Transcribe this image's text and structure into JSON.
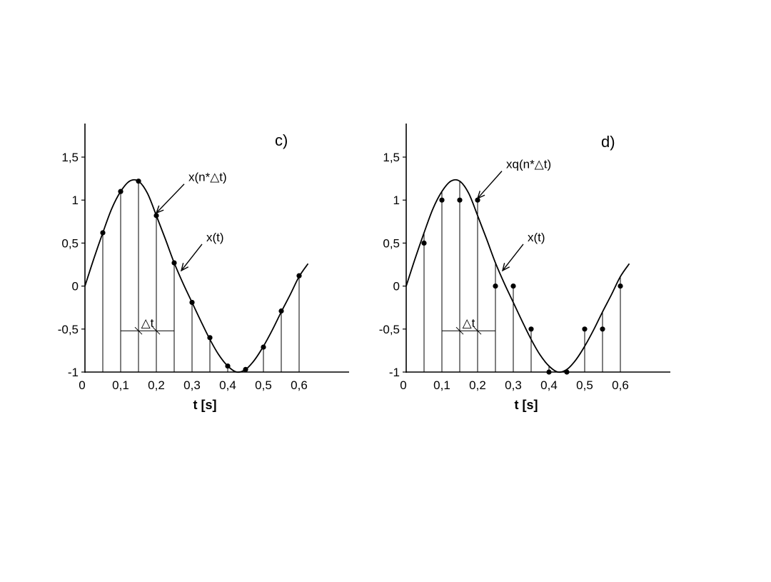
{
  "chart_data": [
    {
      "type": "line",
      "panel_label": "c)",
      "xlabel": "t [s]",
      "ylabel": "",
      "xlim": [
        0,
        0.6
      ],
      "ylim": [
        -1,
        1.5
      ],
      "x_tick_labels": [
        "0",
        "0,1",
        "0,2",
        "0,3",
        "0,4",
        "0,5",
        "0,6"
      ],
      "x_ticks": [
        0,
        0.1,
        0.2,
        0.3,
        0.4,
        0.5,
        0.6
      ],
      "y_tick_labels": [
        "1,5",
        "1",
        "0,5",
        "0",
        "-0,5",
        "-1"
      ],
      "y_ticks": [
        1.5,
        1,
        0.5,
        0,
        -0.5,
        -1
      ],
      "grid": false,
      "series": [
        {
          "name": "x(t)",
          "kind": "continuous",
          "x": [
            0,
            0.025,
            0.05,
            0.075,
            0.1,
            0.125,
            0.15,
            0.175,
            0.2,
            0.225,
            0.25,
            0.275,
            0.3,
            0.325,
            0.35,
            0.375,
            0.4,
            0.425,
            0.45,
            0.475,
            0.5,
            0.525,
            0.55,
            0.575,
            0.6,
            0.625
          ],
          "values": [
            0.0,
            0.32,
            0.62,
            0.9,
            1.1,
            1.22,
            1.22,
            1.08,
            0.82,
            0.55,
            0.27,
            0.03,
            -0.19,
            -0.41,
            -0.62,
            -0.8,
            -0.93,
            -1.0,
            -0.97,
            -0.86,
            -0.7,
            -0.51,
            -0.3,
            -0.1,
            0.11,
            0.26
          ]
        },
        {
          "name": "x(n*△t)",
          "kind": "samples",
          "x": [
            0.05,
            0.1,
            0.15,
            0.2,
            0.25,
            0.3,
            0.35,
            0.4,
            0.45,
            0.5,
            0.55,
            0.6
          ],
          "values": [
            0.62,
            1.1,
            1.22,
            0.82,
            0.27,
            -0.19,
            -0.6,
            -0.93,
            -0.97,
            -0.71,
            -0.29,
            0.12
          ]
        }
      ],
      "annotations": [
        {
          "text": "x(n*△t)",
          "x": 0.29,
          "y": 1.22,
          "arrow_to": [
            0.2,
            0.85
          ]
        },
        {
          "text": "x(t)",
          "x": 0.34,
          "y": 0.52,
          "arrow_to": [
            0.27,
            0.18
          ]
        },
        {
          "text": "△t",
          "x": 0.175,
          "y": -0.5
        }
      ]
    },
    {
      "type": "line",
      "panel_label": "d)",
      "xlabel": "t [s]",
      "ylabel": "",
      "xlim": [
        0,
        0.6
      ],
      "ylim": [
        -1,
        1.5
      ],
      "x_tick_labels": [
        "0",
        "0,1",
        "0,2",
        "0,3",
        "0,4",
        "0,5",
        "0,6"
      ],
      "x_ticks": [
        0,
        0.1,
        0.2,
        0.3,
        0.4,
        0.5,
        0.6
      ],
      "y_tick_labels": [
        "1,5",
        "1",
        "0,5",
        "0",
        "-0,5",
        "-1"
      ],
      "y_ticks": [
        1.5,
        1,
        0.5,
        0,
        -0.5,
        -1
      ],
      "grid": false,
      "series": [
        {
          "name": "x(t)",
          "kind": "continuous",
          "x": [
            0,
            0.025,
            0.05,
            0.075,
            0.1,
            0.125,
            0.15,
            0.175,
            0.2,
            0.225,
            0.25,
            0.275,
            0.3,
            0.325,
            0.35,
            0.375,
            0.4,
            0.425,
            0.45,
            0.475,
            0.5,
            0.525,
            0.55,
            0.575,
            0.6,
            0.625
          ],
          "values": [
            0.0,
            0.32,
            0.62,
            0.9,
            1.1,
            1.22,
            1.22,
            1.08,
            0.82,
            0.55,
            0.27,
            0.03,
            -0.19,
            -0.41,
            -0.62,
            -0.8,
            -0.93,
            -1.0,
            -0.97,
            -0.86,
            -0.7,
            -0.51,
            -0.3,
            -0.1,
            0.11,
            0.26
          ]
        },
        {
          "name": "xq(n*△t)",
          "kind": "samples",
          "x": [
            0.05,
            0.1,
            0.15,
            0.2,
            0.25,
            0.3,
            0.35,
            0.4,
            0.45,
            0.5,
            0.55,
            0.6
          ],
          "values": [
            0.5,
            1.0,
            1.0,
            1.0,
            0.0,
            0.0,
            -0.5,
            -1.0,
            -1.0,
            -0.5,
            -0.5,
            0.0
          ]
        }
      ],
      "annotations": [
        {
          "text": "xq(n*△t)",
          "x": 0.28,
          "y": 1.37,
          "arrow_to": [
            0.2,
            1.02
          ]
        },
        {
          "text": "x(t)",
          "x": 0.34,
          "y": 0.52,
          "arrow_to": [
            0.27,
            0.18
          ]
        },
        {
          "text": "△t",
          "x": 0.175,
          "y": -0.5
        }
      ]
    }
  ]
}
